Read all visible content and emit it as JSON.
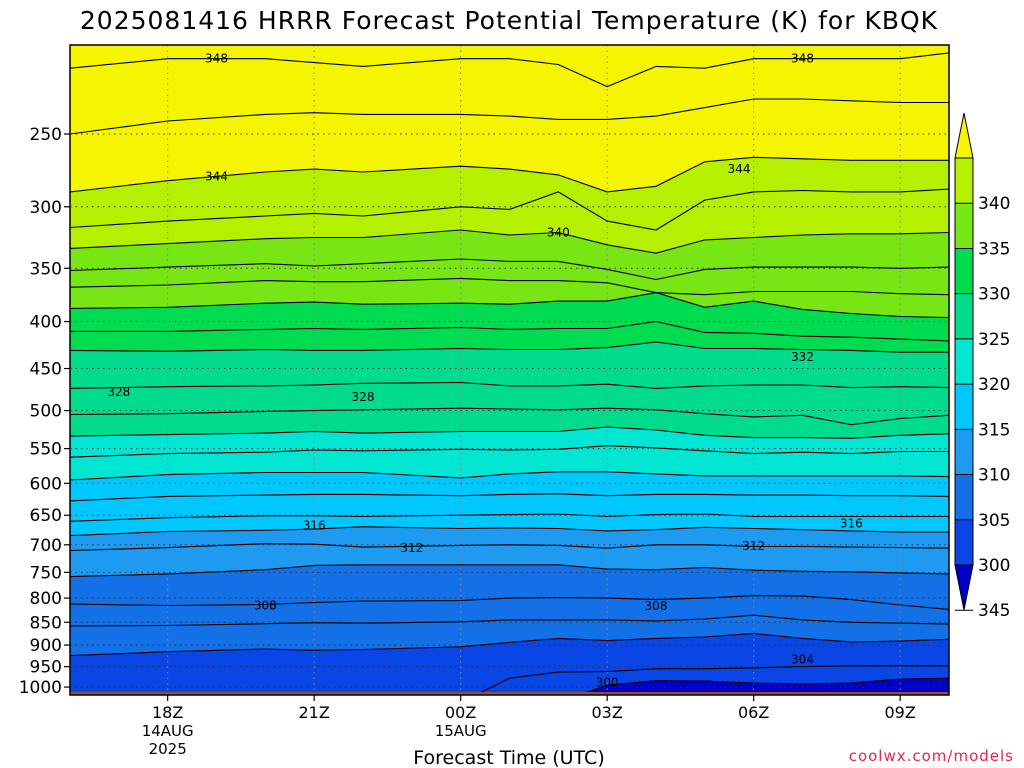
{
  "chart_data": {
    "type": "contour",
    "title": "2025081416 HRRR Forecast Potential Temperature (K) for KBQK",
    "xlabel": "Forecast Time (UTC)",
    "ylabel": "",
    "credit": "coolwx.com/models",
    "y_axis": {
      "scale": "log-pressure",
      "inverted": true,
      "ylim": [
        1020,
        200
      ],
      "ticks": [
        250,
        300,
        350,
        400,
        450,
        500,
        550,
        600,
        650,
        700,
        750,
        800,
        850,
        900,
        950,
        1000
      ]
    },
    "x_axis": {
      "xlim_hours": [
        16,
        34
      ],
      "ticks": [
        {
          "hour": 18,
          "label": "18Z",
          "sub1": "14AUG",
          "sub2": "2025"
        },
        {
          "hour": 21,
          "label": "21Z",
          "sub1": "",
          "sub2": ""
        },
        {
          "hour": 24,
          "label": "00Z",
          "sub1": "15AUG",
          "sub2": ""
        },
        {
          "hour": 27,
          "label": "03Z",
          "sub1": "",
          "sub2": ""
        },
        {
          "hour": 30,
          "label": "06Z",
          "sub1": "",
          "sub2": ""
        },
        {
          "hour": 33,
          "label": "09Z",
          "sub1": "",
          "sub2": ""
        }
      ]
    },
    "grid": true,
    "colorbar": {
      "ticks": [
        300,
        305,
        310,
        315,
        320,
        325,
        330,
        335,
        340,
        345
      ],
      "levels": [
        {
          "min": 295,
          "max": 300,
          "color": "#0000c8"
        },
        {
          "min": 300,
          "max": 305,
          "color": "#0a46e6"
        },
        {
          "min": 305,
          "max": 310,
          "color": "#1470e6"
        },
        {
          "min": 310,
          "max": 315,
          "color": "#1e9bf0"
        },
        {
          "min": 315,
          "max": 320,
          "color": "#00c8ff"
        },
        {
          "min": 320,
          "max": 325,
          "color": "#00e6d2"
        },
        {
          "min": 325,
          "max": 330,
          "color": "#00dc8c"
        },
        {
          "min": 330,
          "max": 335,
          "color": "#00dc50"
        },
        {
          "min": 335,
          "max": 340,
          "color": "#78e614"
        },
        {
          "min": 340,
          "max": 345,
          "color": "#b4f000"
        },
        {
          "min": 345,
          "max": 355,
          "color": "#f5f500"
        }
      ]
    },
    "terrain_color": "#a0522d",
    "isentropes_hours": [
      16,
      18,
      20,
      21,
      22,
      24,
      25,
      26,
      27,
      28,
      29,
      30,
      31,
      32,
      33,
      34
    ],
    "isentropes": [
      {
        "theta": 348,
        "p": [
          212,
          207,
          207,
          209,
          211,
          207,
          207,
          210,
          222,
          211,
          212,
          207,
          207,
          207,
          207,
          204
        ]
      },
      {
        "theta": 346,
        "p": [
          250,
          242,
          238,
          237,
          238,
          238,
          239,
          241,
          241,
          239,
          234,
          229,
          229,
          230,
          231,
          231
        ]
      },
      {
        "theta": 344,
        "p": [
          289,
          281,
          275,
          273,
          275,
          271,
          273,
          277,
          289,
          285,
          268,
          265,
          266,
          267,
          267,
          267
        ]
      },
      {
        "theta": 342,
        "p": [
          316,
          311,
          307,
          305,
          307,
          300,
          302,
          289,
          311,
          318,
          295,
          289,
          288,
          289,
          289,
          287
        ]
      },
      {
        "theta": 340,
        "p": [
          333,
          329,
          325,
          324,
          324,
          318,
          322,
          320,
          330,
          337,
          326,
          324,
          322,
          321,
          321,
          320
        ]
      },
      {
        "theta": 338,
        "p": [
          352,
          349,
          346,
          348,
          346,
          342,
          344,
          344,
          351,
          360,
          351,
          349,
          349,
          349,
          350,
          349
        ]
      },
      {
        "theta": 336,
        "p": [
          367,
          365,
          361,
          362,
          362,
          359,
          361,
          361,
          363,
          372,
          374,
          371,
          371,
          371,
          373,
          374
        ]
      },
      {
        "theta": 334,
        "p": [
          387,
          386,
          382,
          381,
          383,
          382,
          383,
          380,
          380,
          372,
          386,
          380,
          388,
          392,
          395,
          396
        ]
      },
      {
        "theta": 332,
        "p": [
          410,
          410,
          408,
          407,
          408,
          406,
          408,
          407,
          407,
          400,
          411,
          412,
          415,
          416,
          418,
          420
        ]
      },
      {
        "theta": 330,
        "p": [
          430,
          431,
          429,
          430,
          430,
          428,
          429,
          429,
          427,
          421,
          428,
          428,
          429,
          430,
          432,
          432
        ]
      },
      {
        "theta": 328,
        "p": [
          473,
          471,
          470,
          469,
          467,
          466,
          470,
          470,
          468,
          473,
          470,
          469,
          469,
          472,
          471,
          472
        ]
      },
      {
        "theta": 326,
        "p": [
          505,
          504,
          501,
          500,
          499,
          497,
          498,
          499,
          497,
          499,
          504,
          508,
          506,
          518,
          510,
          506
        ]
      },
      {
        "theta": 324,
        "p": [
          533,
          531,
          529,
          527,
          529,
          527,
          527,
          527,
          521,
          525,
          532,
          535,
          535,
          536,
          532,
          530
        ]
      },
      {
        "theta": 322,
        "p": [
          562,
          557,
          555,
          552,
          553,
          551,
          552,
          551,
          546,
          549,
          553,
          557,
          555,
          557,
          554,
          554
        ]
      },
      {
        "theta": 320,
        "p": [
          595,
          587,
          584,
          584,
          584,
          592,
          586,
          583,
          583,
          586,
          589,
          589,
          589,
          589,
          589,
          590
        ]
      },
      {
        "theta": 318,
        "p": [
          627,
          620,
          618,
          617,
          617,
          619,
          617,
          616,
          619,
          617,
          617,
          618,
          618,
          619,
          619,
          620
        ]
      },
      {
        "theta": 316,
        "p": [
          660,
          654,
          651,
          651,
          652,
          650,
          649,
          648,
          652,
          649,
          648,
          652,
          652,
          652,
          652,
          652
        ]
      },
      {
        "theta": 314,
        "p": [
          684,
          677,
          675,
          673,
          669,
          672,
          671,
          672,
          676,
          674,
          670,
          672,
          674,
          676,
          678,
          678
        ]
      },
      {
        "theta": 312,
        "p": [
          710,
          705,
          698,
          699,
          704,
          701,
          700,
          701,
          706,
          700,
          700,
          703,
          703,
          704,
          705,
          706
        ]
      },
      {
        "theta": 310,
        "p": [
          758,
          753,
          745,
          737,
          736,
          736,
          736,
          736,
          744,
          745,
          741,
          746,
          748,
          749,
          751,
          753
        ]
      },
      {
        "theta": 308,
        "p": [
          812,
          815,
          813,
          809,
          806,
          805,
          800,
          799,
          800,
          803,
          800,
          795,
          796,
          803,
          814,
          823
        ]
      },
      {
        "theta": 306,
        "p": [
          858,
          857,
          853,
          851,
          852,
          849,
          845,
          845,
          845,
          847,
          843,
          835,
          845,
          850,
          852,
          854
        ]
      },
      {
        "theta": 304,
        "p": [
          924,
          915,
          909,
          912,
          910,
          904,
          894,
          885,
          890,
          885,
          882,
          874,
          885,
          893,
          891,
          887
        ]
      },
      {
        "theta": 302,
        "p": [
          1040,
          1040,
          1040,
          1040,
          1040,
          1040,
          978,
          963,
          962,
          955,
          955,
          953,
          950,
          948,
          948,
          948
        ]
      },
      {
        "theta": 300,
        "p": [
          1040,
          1040,
          1040,
          1040,
          1040,
          1040,
          1040,
          1040,
          995,
          984,
          985,
          990,
          992,
          990,
          980,
          978
        ]
      }
    ],
    "contour_labels": [
      {
        "text": "348",
        "hour": 19.0,
        "p": 207
      },
      {
        "text": "348",
        "hour": 31.0,
        "p": 207
      },
      {
        "text": "344",
        "hour": 19.0,
        "p": 278
      },
      {
        "text": "344",
        "hour": 29.7,
        "p": 273
      },
      {
        "text": "340",
        "hour": 26.0,
        "p": 320
      },
      {
        "text": "332",
        "hour": 31.0,
        "p": 437
      },
      {
        "text": "328",
        "hour": 17.0,
        "p": 477
      },
      {
        "text": "328",
        "hour": 22.0,
        "p": 483
      },
      {
        "text": "316",
        "hour": 21.0,
        "p": 667
      },
      {
        "text": "316",
        "hour": 32.0,
        "p": 664
      },
      {
        "text": "312",
        "hour": 23.0,
        "p": 706
      },
      {
        "text": "312",
        "hour": 30.0,
        "p": 702
      },
      {
        "text": "308",
        "hour": 20.0,
        "p": 815
      },
      {
        "text": "308",
        "hour": 28.0,
        "p": 816
      },
      {
        "text": "304",
        "hour": 31.0,
        "p": 933
      },
      {
        "text": "300",
        "hour": 27.0,
        "p": 988
      }
    ]
  }
}
